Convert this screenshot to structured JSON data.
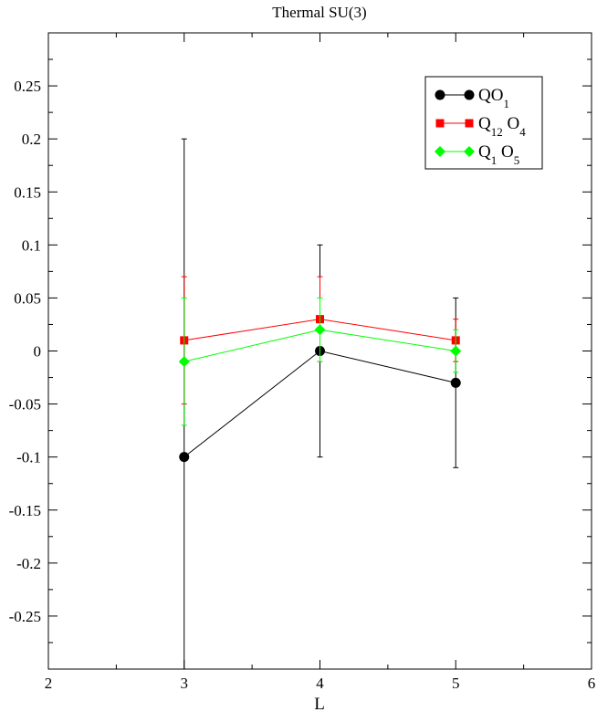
{
  "chart_data": {
    "type": "line",
    "title": "Thermal SU(3)",
    "xlabel": "L",
    "ylabel": "",
    "xlim": [
      2,
      6
    ],
    "ylim": [
      -0.3,
      0.3
    ],
    "x_ticks": [
      "2",
      "3",
      "4",
      "5",
      "6"
    ],
    "y_ticks": [
      "0.25",
      "0.2",
      "0.15",
      "0.1",
      "0.05",
      "0",
      "-0.05",
      "-0.1",
      "-0.15",
      "-0.2",
      "-0.25"
    ],
    "x_tick_values": [
      2,
      3,
      4,
      5,
      6
    ],
    "y_tick_values": [
      0.25,
      0.2,
      0.15,
      0.1,
      0.05,
      0,
      -0.05,
      -0.1,
      -0.15,
      -0.2,
      -0.25
    ],
    "grid": false,
    "legend_position": "top-right",
    "series": [
      {
        "name": "QO",
        "name_sub": "1",
        "color": "#000000",
        "marker": "circle",
        "x": [
          3,
          4,
          5
        ],
        "y": [
          -0.1,
          0.0,
          -0.03
        ],
        "err": [
          0.3,
          0.1,
          0.08
        ]
      },
      {
        "name": "Q",
        "name_sub": "12",
        "name_suffix": " O",
        "name_suffix_sub": "4",
        "color": "#ff0000",
        "marker": "square",
        "x": [
          3,
          4,
          5
        ],
        "y": [
          0.01,
          0.03,
          0.01
        ],
        "err": [
          0.06,
          0.04,
          0.02
        ]
      },
      {
        "name": "Q",
        "name_sub": "1",
        "name_suffix": " O",
        "name_suffix_sub": "5",
        "color": "#00ff00",
        "marker": "diamond",
        "x": [
          3,
          4,
          5
        ],
        "y": [
          -0.01,
          0.02,
          0.0
        ],
        "err": [
          0.06,
          0.03,
          0.02
        ]
      }
    ]
  }
}
